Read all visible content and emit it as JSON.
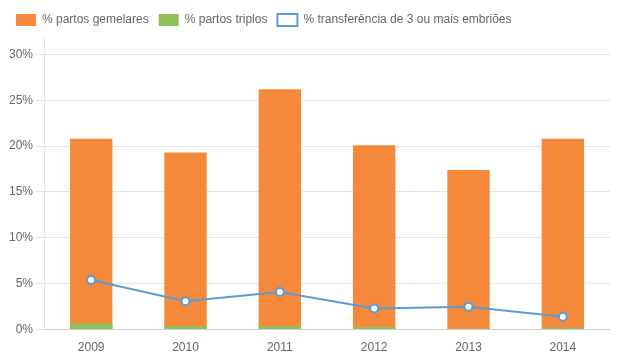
{
  "chart_data": {
    "type": "bar",
    "categories": [
      "2009",
      "2010",
      "2011",
      "2012",
      "2013",
      "2014"
    ],
    "series": [
      {
        "name": "% partos gemelares",
        "type": "bar",
        "color": "#F4893B",
        "values": [
          0.208,
          0.193,
          0.262,
          0.201,
          0.174,
          0.208
        ]
      },
      {
        "name": "% partos triplos",
        "type": "bar",
        "color": "#92C05A",
        "values": [
          0.007,
          0.004,
          0.004,
          0.003,
          0.001,
          0.002
        ]
      },
      {
        "name": "% transferência de 3 ou mais embriões",
        "type": "line",
        "color": "#5B9BD5",
        "marker": "circle",
        "values": [
          0.054,
          0.031,
          0.041,
          0.023,
          0.025,
          0.014
        ]
      }
    ],
    "ylim": [
      0,
      0.32
    ],
    "yticks": [
      {
        "value": 0.0,
        "label": "0%"
      },
      {
        "value": 0.05,
        "label": "5%"
      },
      {
        "value": 0.1,
        "label": "10%"
      },
      {
        "value": 0.15,
        "label": "15%"
      },
      {
        "value": 0.2,
        "label": "20%"
      },
      {
        "value": 0.25,
        "label": "25%"
      },
      {
        "value": 0.3,
        "label": "30%"
      }
    ],
    "grid": true,
    "legend": "upper left"
  }
}
